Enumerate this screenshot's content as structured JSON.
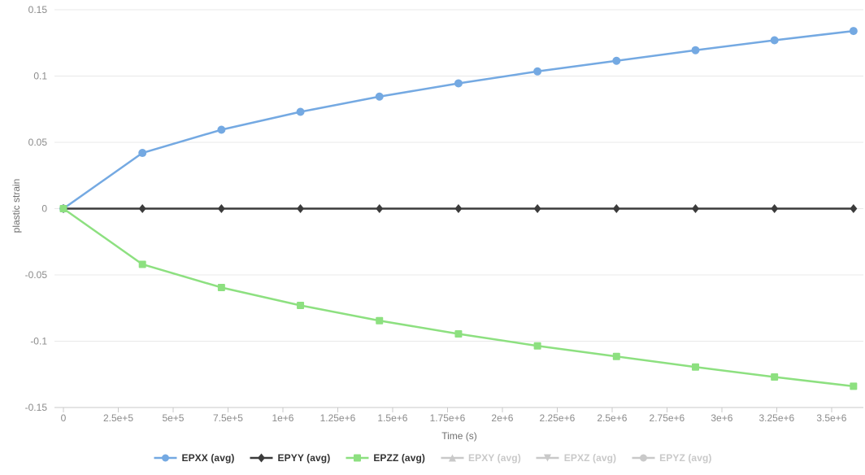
{
  "chart_data": {
    "type": "line",
    "title": "",
    "xlabel": "Time (s)",
    "ylabel": "plastic strain",
    "xlim": [
      0,
      3645000
    ],
    "ylim": [
      -0.15,
      0.15
    ],
    "grid": "horizontal",
    "legend_position": "bottom",
    "x": [
      0,
      360000,
      720000,
      1080000,
      1440000,
      1800000,
      2160000,
      2520000,
      2880000,
      3240000,
      3600000
    ],
    "series": [
      {
        "name": "EPXX (avg)",
        "marker": "circle",
        "color": "#74a9e2",
        "active": true,
        "values": [
          0,
          0.042,
          0.0595,
          0.073,
          0.0845,
          0.0945,
          0.1035,
          0.1115,
          0.1195,
          0.127,
          0.134
        ]
      },
      {
        "name": "EPYY (avg)",
        "marker": "diamond",
        "color": "#3b3b3b",
        "active": true,
        "values": [
          0,
          0,
          0,
          0,
          0,
          0,
          0,
          0,
          0,
          0,
          0
        ]
      },
      {
        "name": "EPZZ (avg)",
        "marker": "square",
        "color": "#8de080",
        "active": true,
        "values": [
          0,
          -0.042,
          -0.0595,
          -0.073,
          -0.0845,
          -0.0945,
          -0.1035,
          -0.1115,
          -0.1195,
          -0.127,
          -0.134
        ]
      },
      {
        "name": "EPXY (avg)",
        "marker": "triangle-up",
        "color": "#c9c9c9",
        "active": false,
        "values": []
      },
      {
        "name": "EPXZ (avg)",
        "marker": "triangle-down",
        "color": "#c9c9c9",
        "active": false,
        "values": []
      },
      {
        "name": "EPYZ (avg)",
        "marker": "circle",
        "color": "#c9c9c9",
        "active": false,
        "values": []
      }
    ],
    "xticks": {
      "values": [
        0,
        250000,
        500000,
        750000,
        1000000,
        1250000,
        1500000,
        1750000,
        2000000,
        2250000,
        2500000,
        2750000,
        3000000,
        3250000,
        3500000
      ],
      "labels": [
        "0",
        "2.5e+5",
        "5e+5",
        "7.5e+5",
        "1e+6",
        "1.25e+6",
        "1.5e+6",
        "1.75e+6",
        "2e+6",
        "2.25e+6",
        "2.5e+6",
        "2.75e+6",
        "3e+6",
        "3.25e+6",
        "3.5e+6"
      ]
    },
    "yticks": {
      "values": [
        -0.15,
        -0.1,
        -0.05,
        0,
        0.05,
        0.1,
        0.15
      ],
      "labels": [
        "-0.15",
        "-0.1",
        "-0.05",
        "0",
        "0.05",
        "0.1",
        "0.15"
      ]
    },
    "colors": {
      "grid": "#e8e8e8",
      "axis": "#c9c9c9",
      "tick_label": "#8b8b8b",
      "axis_title": "#6f6f6f",
      "legend_active_text": "#333333",
      "legend_inactive": "#c9c9c9"
    }
  }
}
